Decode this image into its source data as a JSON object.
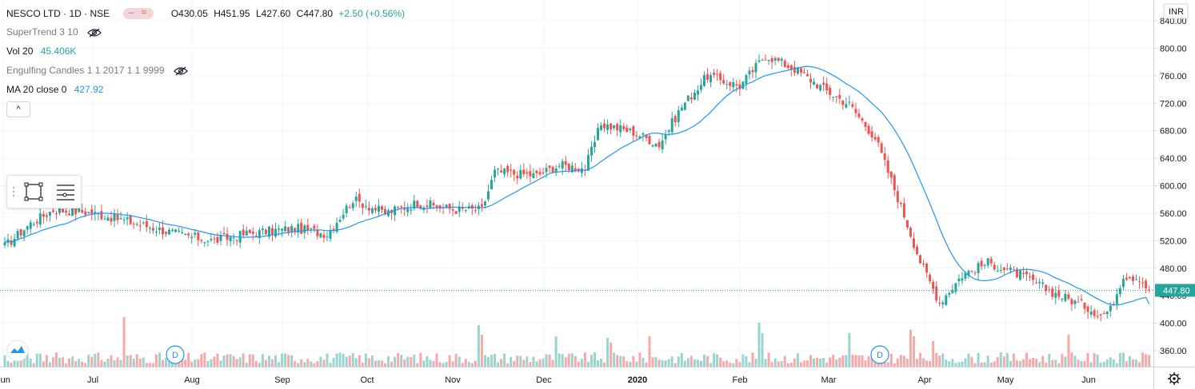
{
  "header": {
    "symbol": "NESCO LTD · 1D · NSE",
    "open": "O430.05",
    "high": "H451.95",
    "low": "L427.60",
    "close": "C447.80",
    "change": "+2.50 (+0.56%)"
  },
  "indicators": {
    "supertrend": "SuperTrend 3 10",
    "volume_label": "Vol 20",
    "volume_value": "45.406K",
    "engulfing": "Engulfing Candles 1 1 2017 1 1 9999",
    "ma_label": "MA 20 close 0",
    "ma_value": "427.92"
  },
  "currency": "INR",
  "last_price_label": "447.80",
  "collapse_glyph": "^",
  "event_markers": [
    "D",
    "D"
  ],
  "colors": {
    "up": "#26a69a",
    "down": "#ef5350",
    "ma": "#2196f3",
    "vol_up": "#99d4cf",
    "vol_down": "#f7a9a7"
  },
  "chart_data": {
    "type": "candlestick",
    "y_range": [
      340,
      845
    ],
    "y_ticks": [
      360,
      400,
      440,
      480,
      520,
      560,
      600,
      640,
      680,
      720,
      760,
      800,
      840
    ],
    "y_tick_labels": [
      "360.00",
      "400.00",
      "440.00",
      "480.00",
      "520.00",
      "560.00",
      "600.00",
      "640.00",
      "680.00",
      "720.00",
      "760.00",
      "800.00",
      "840.00"
    ],
    "x_labels": [
      "Jun",
      "Jul",
      "Aug",
      "Sep",
      "Oct",
      "Nov",
      "Dec",
      "2020",
      "Feb",
      "Mar",
      "Apr",
      "May",
      "Jun"
    ],
    "x_label_bold": [
      false,
      false,
      false,
      false,
      false,
      false,
      false,
      true,
      false,
      false,
      false,
      false,
      false
    ],
    "close_anchors": [
      [
        0,
        512
      ],
      [
        8,
        545
      ],
      [
        15,
        565
      ],
      [
        25,
        562
      ],
      [
        35,
        552
      ],
      [
        45,
        540
      ],
      [
        55,
        528
      ],
      [
        65,
        520
      ],
      [
        75,
        530
      ],
      [
        90,
        538
      ],
      [
        100,
        530
      ],
      [
        108,
        580
      ],
      [
        118,
        560
      ],
      [
        128,
        575
      ],
      [
        140,
        565
      ],
      [
        148,
        565
      ],
      [
        152,
        620
      ],
      [
        165,
        615
      ],
      [
        172,
        630
      ],
      [
        180,
        625
      ],
      [
        185,
        690
      ],
      [
        195,
        678
      ],
      [
        203,
        660
      ],
      [
        210,
        715
      ],
      [
        218,
        760
      ],
      [
        228,
        745
      ],
      [
        236,
        790
      ],
      [
        245,
        770
      ],
      [
        255,
        738
      ],
      [
        262,
        718
      ],
      [
        270,
        670
      ],
      [
        278,
        570
      ],
      [
        284,
        490
      ],
      [
        290,
        430
      ],
      [
        297,
        470
      ],
      [
        305,
        488
      ],
      [
        315,
        470
      ],
      [
        325,
        445
      ],
      [
        335,
        425
      ],
      [
        340,
        412
      ],
      [
        343,
        420
      ],
      [
        347,
        470
      ],
      [
        352,
        466
      ],
      [
        355,
        447.8
      ]
    ],
    "ma_last": 427.92,
    "last_close": 447.8
  }
}
